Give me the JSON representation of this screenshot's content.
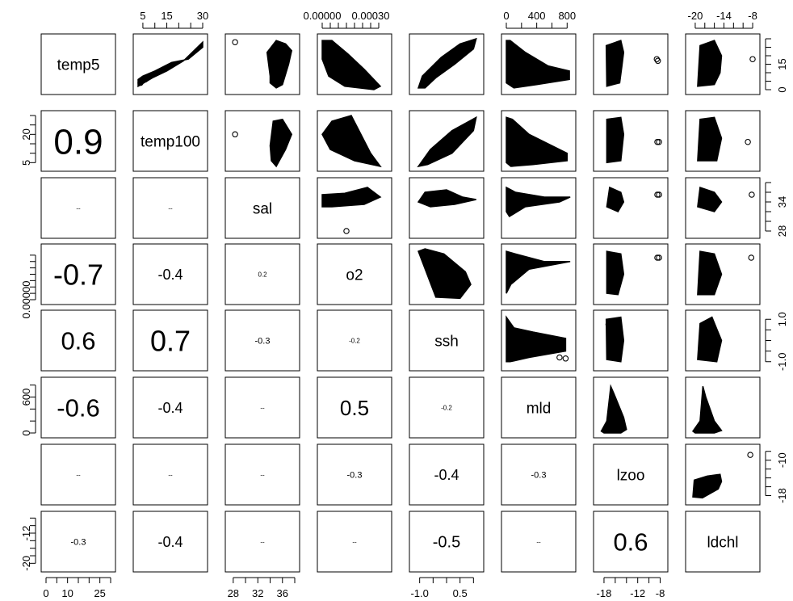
{
  "chart_data": {
    "type": "scatter",
    "variables": [
      "temp5",
      "temp100",
      "sal",
      "o2",
      "ssh",
      "mld",
      "lzoo",
      "ldchl"
    ],
    "correlations": [
      {
        "row": "temp100",
        "col": "temp5",
        "label": "0.9"
      },
      {
        "row": "sal",
        "col": "temp5",
        "label": "--"
      },
      {
        "row": "sal",
        "col": "temp100",
        "label": "--"
      },
      {
        "row": "o2",
        "col": "temp5",
        "label": "-0.7"
      },
      {
        "row": "o2",
        "col": "temp100",
        "label": "-0.4"
      },
      {
        "row": "o2",
        "col": "sal",
        "label": "0.2"
      },
      {
        "row": "ssh",
        "col": "temp5",
        "label": "0.6"
      },
      {
        "row": "ssh",
        "col": "temp100",
        "label": "0.7"
      },
      {
        "row": "ssh",
        "col": "sal",
        "label": "-0.3"
      },
      {
        "row": "ssh",
        "col": "o2",
        "label": "-0.2"
      },
      {
        "row": "mld",
        "col": "temp5",
        "label": "-0.6"
      },
      {
        "row": "mld",
        "col": "temp100",
        "label": "-0.4"
      },
      {
        "row": "mld",
        "col": "sal",
        "label": "--"
      },
      {
        "row": "mld",
        "col": "o2",
        "label": "0.5"
      },
      {
        "row": "mld",
        "col": "ssh",
        "label": "-0.2"
      },
      {
        "row": "lzoo",
        "col": "temp5",
        "label": "--"
      },
      {
        "row": "lzoo",
        "col": "temp100",
        "label": "--"
      },
      {
        "row": "lzoo",
        "col": "sal",
        "label": "--"
      },
      {
        "row": "lzoo",
        "col": "o2",
        "label": "-0.3"
      },
      {
        "row": "lzoo",
        "col": "ssh",
        "label": "-0.4"
      },
      {
        "row": "lzoo",
        "col": "mld",
        "label": "-0.3"
      },
      {
        "row": "ldchl",
        "col": "temp5",
        "label": "-0.3"
      },
      {
        "row": "ldchl",
        "col": "temp100",
        "label": "-0.4"
      },
      {
        "row": "ldchl",
        "col": "sal",
        "label": "--"
      },
      {
        "row": "ldchl",
        "col": "o2",
        "label": "--"
      },
      {
        "row": "ldchl",
        "col": "ssh",
        "label": "-0.5"
      },
      {
        "row": "ldchl",
        "col": "mld",
        "label": "--"
      },
      {
        "row": "ldchl",
        "col": "lzoo",
        "label": "0.6"
      }
    ],
    "axes": {
      "temp5": {
        "side": "bottom",
        "range": [
          0,
          30
        ],
        "tick_labels": [
          "0",
          "10",
          "25"
        ]
      },
      "temp100": {
        "side": "top",
        "range": [
          3,
          30
        ],
        "tick_labels": [
          "5",
          "15",
          "30"
        ]
      },
      "sal": {
        "side": "bottom",
        "range": [
          27.5,
          38
        ],
        "tick_labels": [
          "28",
          "32",
          "36"
        ]
      },
      "o2": {
        "side": "top",
        "range": [
          0,
          0.0004
        ],
        "tick_labels": [
          "0.00000",
          "0.00030"
        ]
      },
      "ssh": {
        "side": "bottom",
        "range": [
          -1.2,
          1.2
        ],
        "tick_labels": [
          "-1.0",
          "0.5"
        ]
      },
      "mld": {
        "side": "top",
        "range": [
          0,
          850
        ],
        "tick_labels": [
          "0",
          "400",
          "800"
        ]
      },
      "lzoo": {
        "side": "bottom",
        "range": [
          -19,
          -7.5
        ],
        "tick_labels": [
          "-18",
          "-12",
          "-8"
        ]
      },
      "ldchl": {
        "side": "top",
        "range": [
          -21,
          -7.5
        ],
        "tick_labels": [
          "-20",
          "-14",
          "-8"
        ]
      },
      "temp5_right": {
        "side": "right",
        "range": [
          0,
          30
        ],
        "tick_labels": [
          "0",
          "15"
        ]
      },
      "temp100_left": {
        "side": "left",
        "range": [
          3,
          30
        ],
        "tick_labels": [
          "5",
          "20"
        ]
      },
      "sal_right": {
        "side": "right",
        "range": [
          27.5,
          38
        ],
        "tick_labels": [
          "28",
          "34"
        ]
      },
      "o2_left": {
        "side": "left",
        "range": [
          0,
          0.0004
        ],
        "tick_labels": [
          "0.00000"
        ]
      },
      "ssh_right": {
        "side": "right",
        "range": [
          -1.2,
          1.2
        ],
        "tick_labels": [
          "-1.0",
          "1.0"
        ]
      },
      "mld_left": {
        "side": "left",
        "range": [
          0,
          850
        ],
        "tick_labels": [
          "0",
          "600"
        ]
      },
      "lzoo_right": {
        "side": "right",
        "range": [
          -19,
          -7.5
        ],
        "tick_labels": [
          "-18",
          "-10"
        ]
      },
      "ldchl_left": {
        "side": "left",
        "range": [
          -21,
          -7.5
        ],
        "tick_labels": [
          "-20",
          "-12"
        ]
      }
    }
  }
}
